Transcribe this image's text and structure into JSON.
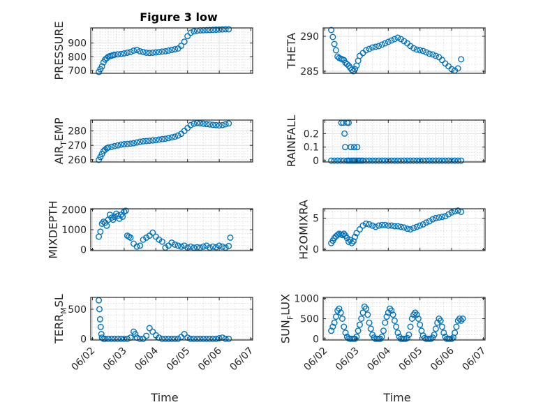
{
  "figure_title": "Figure 3 low",
  "colors": {
    "marker": "#0072BD"
  },
  "x_ticks": [
    "06/02",
    "06/03",
    "06/04",
    "06/05",
    "06/06",
    "06/07"
  ],
  "x_label": "Time",
  "chart_data": [
    {
      "type": "scatter",
      "ylabel": "PRESSURE",
      "ylim": [
        680,
        1010
      ],
      "yticks": [
        700,
        800,
        900
      ],
      "grid": true,
      "x": [
        0.2,
        0.25,
        0.3,
        0.35,
        0.4,
        0.45,
        0.5,
        0.55,
        0.6,
        0.65,
        0.7,
        0.8,
        0.9,
        1.0,
        1.1,
        1.2,
        1.3,
        1.4,
        1.5,
        1.6,
        1.7,
        1.8,
        1.9,
        2.0,
        2.1,
        2.2,
        2.3,
        2.4,
        2.5,
        2.6,
        2.7,
        2.8,
        2.9,
        3.0,
        3.1,
        3.2,
        3.3,
        3.4,
        3.5,
        3.6,
        3.7,
        3.8,
        3.9,
        4.0,
        4.1,
        4.2,
        4.3
      ],
      "y": [
        690,
        710,
        730,
        760,
        780,
        790,
        800,
        805,
        808,
        812,
        815,
        818,
        820,
        825,
        830,
        835,
        845,
        850,
        840,
        835,
        830,
        828,
        830,
        832,
        835,
        838,
        840,
        845,
        850,
        855,
        860,
        880,
        910,
        950,
        975,
        985,
        990,
        992,
        993,
        994,
        995,
        996,
        997,
        998,
        999,
        1000,
        1000
      ]
    },
    {
      "type": "scatter",
      "ylabel": "THETA",
      "ylim": [
        284.7,
        291.2
      ],
      "yticks": [
        285,
        290
      ],
      "grid": true,
      "x": [
        0.2,
        0.25,
        0.3,
        0.35,
        0.4,
        0.45,
        0.5,
        0.55,
        0.6,
        0.65,
        0.7,
        0.75,
        0.8,
        0.85,
        0.9,
        0.95,
        1.0,
        1.05,
        1.1,
        1.2,
        1.3,
        1.4,
        1.5,
        1.6,
        1.7,
        1.8,
        1.9,
        2.0,
        2.1,
        2.2,
        2.3,
        2.4,
        2.5,
        2.6,
        2.7,
        2.8,
        2.9,
        3.0,
        3.1,
        3.2,
        3.3,
        3.4,
        3.5,
        3.6,
        3.7,
        3.8,
        3.9,
        4.0,
        4.1,
        4.2,
        4.3
      ],
      "y": [
        290.9,
        289.9,
        288.9,
        288.0,
        287.1,
        286.9,
        286.8,
        286.7,
        286.6,
        286.2,
        286.0,
        285.8,
        285.5,
        285.2,
        285.0,
        285.3,
        285.8,
        286.5,
        287.2,
        287.6,
        288.0,
        288.2,
        288.4,
        288.5,
        288.6,
        288.8,
        289.0,
        289.2,
        289.4,
        289.6,
        289.8,
        289.6,
        289.3,
        289.0,
        288.6,
        288.3,
        288.1,
        288.0,
        287.9,
        287.7,
        287.5,
        287.4,
        287.2,
        287.0,
        286.6,
        286.1,
        285.7,
        285.3,
        285.1,
        285.4,
        286.7
      ]
    },
    {
      "type": "scatter",
      "ylabel": "AIR_TEMP",
      "ylim": [
        258.5,
        287.5
      ],
      "yticks": [
        260,
        270,
        280
      ],
      "grid": true,
      "x": [
        0.2,
        0.25,
        0.3,
        0.35,
        0.4,
        0.45,
        0.5,
        0.6,
        0.7,
        0.8,
        0.9,
        1.0,
        1.1,
        1.2,
        1.3,
        1.4,
        1.5,
        1.6,
        1.7,
        1.8,
        1.9,
        2.0,
        2.1,
        2.2,
        2.3,
        2.4,
        2.5,
        2.6,
        2.7,
        2.8,
        2.9,
        3.0,
        3.1,
        3.2,
        3.3,
        3.4,
        3.5,
        3.6,
        3.7,
        3.8,
        3.9,
        4.0,
        4.1,
        4.2,
        4.3
      ],
      "y": [
        260,
        262,
        264,
        266,
        267,
        268,
        268.5,
        269,
        269.5,
        270,
        270.5,
        270.8,
        271,
        271.2,
        271.5,
        272,
        272.5,
        272.8,
        273,
        273.2,
        273.4,
        273.6,
        274,
        274.3,
        274.6,
        275,
        275.5,
        276,
        276.8,
        278,
        280,
        282,
        284,
        285,
        285.5,
        285.3,
        285,
        284.7,
        284.5,
        284.2,
        284,
        283.8,
        284,
        284.6,
        285.2
      ]
    },
    {
      "type": "scatter",
      "ylabel": "RAINFALL",
      "ylim": [
        -0.01,
        0.3
      ],
      "yticks": [
        0,
        0.1,
        0.2
      ],
      "grid": true,
      "x": [
        0.2,
        0.3,
        0.4,
        0.5,
        0.6,
        0.7,
        0.75,
        0.8,
        0.85,
        0.9,
        0.95,
        1.0,
        1.05,
        1.1,
        1.15,
        1.2,
        1.3,
        1.4,
        1.5,
        1.6,
        1.7,
        1.8,
        1.9,
        2.0,
        2.1,
        2.2,
        2.3,
        2.4,
        2.5,
        2.6,
        2.7,
        2.8,
        2.9,
        3.0,
        3.1,
        3.2,
        3.3,
        3.4,
        3.5,
        3.6,
        3.7,
        3.8,
        3.9,
        4.0,
        4.1,
        4.2,
        4.3,
        0.52,
        0.58,
        0.62,
        0.64,
        0.7,
        0.75,
        0.82,
        0.92,
        1.02
      ],
      "y": [
        0,
        0,
        0,
        0,
        0,
        0,
        0,
        0,
        0,
        0,
        0,
        0,
        0,
        0,
        0,
        0,
        0,
        0,
        0,
        0,
        0,
        0,
        0,
        0,
        0,
        0,
        0,
        0,
        0,
        0,
        0,
        0,
        0,
        0,
        0,
        0,
        0,
        0,
        0,
        0,
        0,
        0,
        0,
        0,
        0,
        0,
        0,
        0.28,
        0.28,
        0.2,
        0.1,
        0.28,
        0.28,
        0.1,
        0.1,
        0.1
      ]
    },
    {
      "type": "scatter",
      "ylabel": "MIXDEPTH",
      "ylim": [
        -50,
        2050
      ],
      "yticks": [
        0,
        1000,
        2000
      ],
      "grid": true,
      "x": [
        0.2,
        0.25,
        0.3,
        0.35,
        0.4,
        0.45,
        0.5,
        0.55,
        0.6,
        0.65,
        0.7,
        0.75,
        0.8,
        0.85,
        0.9,
        0.95,
        1.0,
        1.05,
        1.1,
        1.15,
        1.2,
        1.3,
        1.4,
        1.5,
        1.6,
        1.7,
        1.8,
        1.9,
        2.0,
        2.1,
        2.2,
        2.3,
        2.4,
        2.5,
        2.6,
        2.7,
        2.8,
        2.9,
        3.0,
        3.1,
        3.2,
        3.3,
        3.4,
        3.5,
        3.6,
        3.7,
        3.8,
        3.9,
        4.0,
        4.1,
        4.2,
        4.3,
        4.35
      ],
      "y": [
        650,
        900,
        1300,
        1400,
        1350,
        1200,
        1500,
        1750,
        1600,
        1500,
        1650,
        1800,
        1700,
        1550,
        1750,
        1650,
        1900,
        1950,
        700,
        650,
        600,
        300,
        150,
        200,
        500,
        600,
        700,
        850,
        650,
        500,
        400,
        100,
        200,
        350,
        250,
        200,
        150,
        200,
        100,
        150,
        100,
        120,
        100,
        150,
        200,
        100,
        150,
        120,
        200,
        150,
        100,
        180,
        600
      ]
    },
    {
      "type": "scatter",
      "ylabel": "H2OMIXRA",
      "ylim": [
        -0.2,
        6.5
      ],
      "yticks": [
        0,
        5
      ],
      "grid": true,
      "x": [
        0.2,
        0.25,
        0.3,
        0.35,
        0.4,
        0.45,
        0.5,
        0.55,
        0.6,
        0.65,
        0.7,
        0.75,
        0.8,
        0.85,
        0.9,
        0.95,
        1.0,
        1.1,
        1.2,
        1.3,
        1.4,
        1.5,
        1.6,
        1.7,
        1.8,
        1.9,
        2.0,
        2.1,
        2.2,
        2.3,
        2.4,
        2.5,
        2.6,
        2.7,
        2.8,
        2.9,
        3.0,
        3.1,
        3.2,
        3.3,
        3.4,
        3.5,
        3.6,
        3.7,
        3.8,
        3.9,
        4.0,
        4.1,
        4.2,
        4.3
      ],
      "y": [
        1.0,
        1.4,
        1.8,
        2.1,
        2.3,
        2.5,
        2.4,
        2.3,
        2.5,
        2.2,
        1.8,
        1.2,
        1.5,
        1.0,
        1.3,
        2.0,
        2.6,
        3.2,
        3.8,
        4.1,
        4.0,
        3.8,
        3.6,
        3.8,
        3.9,
        3.9,
        3.8,
        3.8,
        3.7,
        3.7,
        3.6,
        3.5,
        3.3,
        3.2,
        3.4,
        3.6,
        3.8,
        4.0,
        4.3,
        4.5,
        4.8,
        5.0,
        5.1,
        5.2,
        5.3,
        5.6,
        5.9,
        6.1,
        6.2,
        6.0
      ]
    },
    {
      "type": "scatter",
      "ylabel": "TERR_MSL",
      "ylim": [
        -20,
        700
      ],
      "yticks": [
        0,
        500
      ],
      "grid": true,
      "x": [
        0.2,
        0.22,
        0.24,
        0.26,
        0.28,
        0.3,
        0.35,
        0.4,
        0.5,
        0.6,
        0.7,
        0.8,
        0.9,
        1.0,
        1.1,
        1.2,
        1.3,
        1.35,
        1.4,
        1.5,
        1.6,
        1.7,
        1.8,
        1.9,
        2.0,
        2.1,
        2.2,
        2.3,
        2.4,
        2.5,
        2.6,
        2.7,
        2.8,
        2.9,
        3.0,
        3.1,
        3.2,
        3.3,
        3.4,
        3.5,
        3.6,
        3.7,
        3.8,
        3.9,
        4.0,
        4.1,
        4.2,
        4.3
      ],
      "y": [
        650,
        500,
        330,
        200,
        80,
        20,
        0,
        0,
        0,
        0,
        0,
        0,
        0,
        0,
        0,
        20,
        120,
        80,
        20,
        0,
        0,
        50,
        180,
        120,
        60,
        20,
        0,
        0,
        0,
        0,
        0,
        0,
        30,
        80,
        20,
        0,
        0,
        0,
        0,
        0,
        0,
        0,
        0,
        0,
        10,
        20,
        0,
        0
      ]
    },
    {
      "type": "scatter",
      "ylabel": "SUN_FLUX",
      "ylim": [
        -30,
        1030
      ],
      "yticks": [
        0,
        500,
        1000
      ],
      "grid": true,
      "x": [
        0.2,
        0.25,
        0.3,
        0.35,
        0.4,
        0.45,
        0.5,
        0.55,
        0.6,
        0.65,
        0.7,
        0.75,
        0.8,
        0.85,
        0.9,
        0.95,
        1.0,
        1.05,
        1.1,
        1.15,
        1.2,
        1.25,
        1.3,
        1.35,
        1.4,
        1.45,
        1.5,
        1.55,
        1.6,
        1.65,
        1.7,
        1.75,
        1.8,
        1.85,
        1.9,
        1.95,
        2.0,
        2.05,
        2.1,
        2.15,
        2.2,
        2.25,
        2.3,
        2.35,
        2.4,
        2.45,
        2.5,
        2.55,
        2.6,
        2.65,
        2.7,
        2.75,
        2.8,
        2.85,
        2.9,
        2.95,
        3.0,
        3.05,
        3.1,
        3.15,
        3.2,
        3.25,
        3.3,
        3.35,
        3.4,
        3.45,
        3.5,
        3.55,
        3.6,
        3.65,
        3.7,
        3.75,
        3.8,
        3.85,
        3.9,
        3.95,
        4.0,
        4.05,
        4.1,
        4.15,
        4.2,
        4.25,
        4.3,
        4.35
      ],
      "y": [
        200,
        300,
        400,
        550,
        700,
        750,
        650,
        500,
        300,
        150,
        50,
        10,
        0,
        0,
        0,
        0,
        50,
        200,
        350,
        500,
        650,
        800,
        750,
        600,
        400,
        250,
        100,
        30,
        0,
        0,
        0,
        0,
        50,
        200,
        400,
        550,
        650,
        750,
        700,
        600,
        450,
        300,
        150,
        50,
        0,
        0,
        0,
        0,
        20,
        100,
        300,
        500,
        600,
        650,
        600,
        500,
        350,
        200,
        80,
        20,
        0,
        0,
        0,
        0,
        30,
        100,
        250,
        400,
        500,
        450,
        300,
        150,
        50,
        0,
        0,
        0,
        0,
        30,
        150,
        300,
        450,
        500,
        450,
        500
      ]
    }
  ]
}
